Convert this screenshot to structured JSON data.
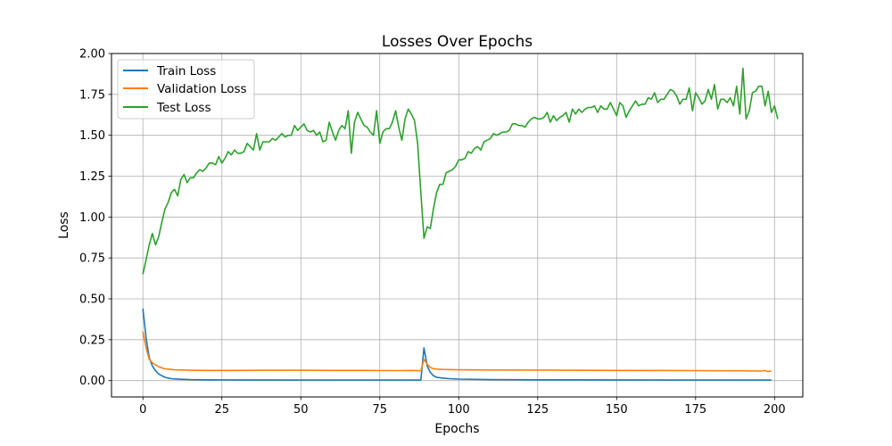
{
  "chart_data": {
    "type": "line",
    "title": "Losses Over Epochs",
    "xlabel": "Epochs",
    "ylabel": "Loss",
    "xlim": [
      -9.95,
      208.95
    ],
    "ylim": [
      -0.1,
      2.0
    ],
    "xticks": [
      0,
      25,
      50,
      75,
      100,
      125,
      150,
      175,
      200
    ],
    "yticks": [
      0.0,
      0.25,
      0.5,
      0.75,
      1.0,
      1.25,
      1.5,
      1.75,
      2.0
    ],
    "xtick_labels": [
      "0",
      "25",
      "50",
      "75",
      "100",
      "125",
      "150",
      "175",
      "200"
    ],
    "ytick_labels": [
      "0.00",
      "0.25",
      "0.50",
      "0.75",
      "1.00",
      "1.25",
      "1.50",
      "1.75",
      "2.00"
    ],
    "grid": true,
    "legend_position": "top-left",
    "series": [
      {
        "name": "Train Loss",
        "color": "#1f77b4",
        "points": [
          [
            0,
            0.44
          ],
          [
            1,
            0.26
          ],
          [
            2,
            0.14
          ],
          [
            3,
            0.09
          ],
          [
            4,
            0.06
          ],
          [
            5,
            0.04
          ],
          [
            6,
            0.03
          ],
          [
            7,
            0.02
          ],
          [
            8,
            0.015
          ],
          [
            9,
            0.012
          ],
          [
            10,
            0.01
          ],
          [
            12,
            0.008
          ],
          [
            15,
            0.006
          ],
          [
            20,
            0.005
          ],
          [
            30,
            0.004
          ],
          [
            50,
            0.003
          ],
          [
            70,
            0.003
          ],
          [
            88,
            0.003
          ],
          [
            89,
            0.2
          ],
          [
            90,
            0.09
          ],
          [
            91,
            0.05
          ],
          [
            92,
            0.03
          ],
          [
            93,
            0.02
          ],
          [
            95,
            0.015
          ],
          [
            97,
            0.012
          ],
          [
            100,
            0.009
          ],
          [
            110,
            0.006
          ],
          [
            125,
            0.005
          ],
          [
            150,
            0.004
          ],
          [
            175,
            0.003
          ],
          [
            199,
            0.003
          ]
        ]
      },
      {
        "name": "Validation Loss",
        "color": "#ff7f0e",
        "points": [
          [
            0,
            0.3
          ],
          [
            1,
            0.2
          ],
          [
            2,
            0.13
          ],
          [
            3,
            0.11
          ],
          [
            4,
            0.095
          ],
          [
            5,
            0.085
          ],
          [
            6,
            0.078
          ],
          [
            7,
            0.072
          ],
          [
            8,
            0.07
          ],
          [
            9,
            0.068
          ],
          [
            10,
            0.066
          ],
          [
            12,
            0.065
          ],
          [
            15,
            0.063
          ],
          [
            20,
            0.062
          ],
          [
            30,
            0.062
          ],
          [
            40,
            0.063
          ],
          [
            50,
            0.063
          ],
          [
            60,
            0.062
          ],
          [
            70,
            0.062
          ],
          [
            80,
            0.061
          ],
          [
            85,
            0.062
          ],
          [
            88,
            0.06
          ],
          [
            89,
            0.13
          ],
          [
            90,
            0.1
          ],
          [
            91,
            0.08
          ],
          [
            92,
            0.073
          ],
          [
            93,
            0.07
          ],
          [
            95,
            0.068
          ],
          [
            100,
            0.066
          ],
          [
            110,
            0.065
          ],
          [
            125,
            0.064
          ],
          [
            150,
            0.062
          ],
          [
            175,
            0.061
          ],
          [
            185,
            0.06
          ],
          [
            190,
            0.06
          ],
          [
            195,
            0.058
          ],
          [
            197,
            0.061
          ],
          [
            198,
            0.055
          ],
          [
            199,
            0.058
          ]
        ]
      },
      {
        "name": "Test Loss",
        "color": "#2ca02c",
        "points": [
          [
            0,
            0.65
          ],
          [
            1,
            0.74
          ],
          [
            2,
            0.83
          ],
          [
            3,
            0.9
          ],
          [
            4,
            0.83
          ],
          [
            5,
            0.88
          ],
          [
            6,
            0.97
          ],
          [
            7,
            1.05
          ],
          [
            8,
            1.09
          ],
          [
            9,
            1.15
          ],
          [
            10,
            1.17
          ],
          [
            11,
            1.13
          ],
          [
            12,
            1.23
          ],
          [
            13,
            1.26
          ],
          [
            14,
            1.21
          ],
          [
            15,
            1.24
          ],
          [
            16,
            1.24
          ],
          [
            17,
            1.27
          ],
          [
            18,
            1.29
          ],
          [
            19,
            1.28
          ],
          [
            20,
            1.3
          ],
          [
            21,
            1.33
          ],
          [
            22,
            1.33
          ],
          [
            23,
            1.32
          ],
          [
            24,
            1.37
          ],
          [
            25,
            1.33
          ],
          [
            26,
            1.36
          ],
          [
            27,
            1.4
          ],
          [
            28,
            1.38
          ],
          [
            29,
            1.41
          ],
          [
            30,
            1.39
          ],
          [
            31,
            1.39
          ],
          [
            32,
            1.4
          ],
          [
            33,
            1.45
          ],
          [
            34,
            1.43
          ],
          [
            35,
            1.41
          ],
          [
            36,
            1.51
          ],
          [
            37,
            1.41
          ],
          [
            38,
            1.46
          ],
          [
            39,
            1.46
          ],
          [
            40,
            1.46
          ],
          [
            41,
            1.48
          ],
          [
            42,
            1.47
          ],
          [
            43,
            1.49
          ],
          [
            44,
            1.51
          ],
          [
            45,
            1.49
          ],
          [
            46,
            1.5
          ],
          [
            47,
            1.5
          ],
          [
            48,
            1.56
          ],
          [
            49,
            1.53
          ],
          [
            50,
            1.55
          ],
          [
            51,
            1.57
          ],
          [
            52,
            1.53
          ],
          [
            53,
            1.52
          ],
          [
            54,
            1.53
          ],
          [
            55,
            1.5
          ],
          [
            56,
            1.52
          ],
          [
            57,
            1.46
          ],
          [
            58,
            1.47
          ],
          [
            59,
            1.58
          ],
          [
            60,
            1.52
          ],
          [
            61,
            1.47
          ],
          [
            62,
            1.53
          ],
          [
            63,
            1.56
          ],
          [
            64,
            1.54
          ],
          [
            65,
            1.65
          ],
          [
            66,
            1.39
          ],
          [
            67,
            1.58
          ],
          [
            68,
            1.64
          ],
          [
            69,
            1.6
          ],
          [
            70,
            1.56
          ],
          [
            71,
            1.55
          ],
          [
            72,
            1.52
          ],
          [
            73,
            1.5
          ],
          [
            74,
            1.65
          ],
          [
            75,
            1.45
          ],
          [
            76,
            1.52
          ],
          [
            77,
            1.54
          ],
          [
            78,
            1.54
          ],
          [
            79,
            1.58
          ],
          [
            80,
            1.65
          ],
          [
            81,
            1.55
          ],
          [
            82,
            1.47
          ],
          [
            83,
            1.6
          ],
          [
            84,
            1.66
          ],
          [
            85,
            1.63
          ],
          [
            86,
            1.59
          ],
          [
            87,
            1.45
          ],
          [
            88,
            1.15
          ],
          [
            89,
            0.87
          ],
          [
            90,
            0.94
          ],
          [
            91,
            0.93
          ],
          [
            92,
            1.05
          ],
          [
            93,
            1.15
          ],
          [
            94,
            1.2
          ],
          [
            95,
            1.2
          ],
          [
            96,
            1.27
          ],
          [
            97,
            1.28
          ],
          [
            98,
            1.29
          ],
          [
            99,
            1.31
          ],
          [
            100,
            1.35
          ],
          [
            101,
            1.35
          ],
          [
            102,
            1.36
          ],
          [
            103,
            1.4
          ],
          [
            104,
            1.39
          ],
          [
            105,
            1.42
          ],
          [
            106,
            1.43
          ],
          [
            107,
            1.41
          ],
          [
            108,
            1.46
          ],
          [
            109,
            1.47
          ],
          [
            110,
            1.48
          ],
          [
            111,
            1.51
          ],
          [
            112,
            1.5
          ],
          [
            113,
            1.51
          ],
          [
            114,
            1.52
          ],
          [
            115,
            1.52
          ],
          [
            116,
            1.53
          ],
          [
            117,
            1.57
          ],
          [
            118,
            1.57
          ],
          [
            119,
            1.56
          ],
          [
            120,
            1.56
          ],
          [
            121,
            1.55
          ],
          [
            122,
            1.58
          ],
          [
            123,
            1.6
          ],
          [
            124,
            1.61
          ],
          [
            125,
            1.6
          ],
          [
            126,
            1.6
          ],
          [
            127,
            1.61
          ],
          [
            128,
            1.64
          ],
          [
            129,
            1.58
          ],
          [
            130,
            1.62
          ],
          [
            131,
            1.59
          ],
          [
            132,
            1.61
          ],
          [
            133,
            1.62
          ],
          [
            134,
            1.64
          ],
          [
            135,
            1.58
          ],
          [
            136,
            1.66
          ],
          [
            137,
            1.63
          ],
          [
            138,
            1.66
          ],
          [
            139,
            1.64
          ],
          [
            140,
            1.66
          ],
          [
            141,
            1.67
          ],
          [
            142,
            1.67
          ],
          [
            143,
            1.68
          ],
          [
            144,
            1.64
          ],
          [
            145,
            1.68
          ],
          [
            146,
            1.66
          ],
          [
            147,
            1.66
          ],
          [
            148,
            1.7
          ],
          [
            149,
            1.66
          ],
          [
            150,
            1.62
          ],
          [
            151,
            1.7
          ],
          [
            152,
            1.68
          ],
          [
            153,
            1.61
          ],
          [
            154,
            1.65
          ],
          [
            155,
            1.68
          ],
          [
            156,
            1.71
          ],
          [
            157,
            1.68
          ],
          [
            158,
            1.69
          ],
          [
            159,
            1.69
          ],
          [
            160,
            1.73
          ],
          [
            161,
            1.72
          ],
          [
            162,
            1.76
          ],
          [
            163,
            1.7
          ],
          [
            164,
            1.72
          ],
          [
            165,
            1.72
          ],
          [
            166,
            1.75
          ],
          [
            167,
            1.78
          ],
          [
            168,
            1.77
          ],
          [
            169,
            1.74
          ],
          [
            170,
            1.69
          ],
          [
            171,
            1.72
          ],
          [
            172,
            1.72
          ],
          [
            173,
            1.79
          ],
          [
            174,
            1.65
          ],
          [
            175,
            1.76
          ],
          [
            176,
            1.73
          ],
          [
            177,
            1.69
          ],
          [
            178,
            1.71
          ],
          [
            179,
            1.78
          ],
          [
            180,
            1.72
          ],
          [
            181,
            1.81
          ],
          [
            182,
            1.66
          ],
          [
            183,
            1.72
          ],
          [
            184,
            1.72
          ],
          [
            185,
            1.7
          ],
          [
            186,
            1.73
          ],
          [
            187,
            1.68
          ],
          [
            188,
            1.8
          ],
          [
            189,
            1.63
          ],
          [
            190,
            1.91
          ],
          [
            191,
            1.6
          ],
          [
            192,
            1.65
          ],
          [
            193,
            1.76
          ],
          [
            194,
            1.77
          ],
          [
            195,
            1.8
          ],
          [
            196,
            1.8
          ],
          [
            197,
            1.68
          ],
          [
            198,
            1.77
          ],
          [
            199,
            1.64
          ],
          [
            200,
            1.68
          ],
          [
            201,
            1.6
          ]
        ]
      }
    ]
  }
}
